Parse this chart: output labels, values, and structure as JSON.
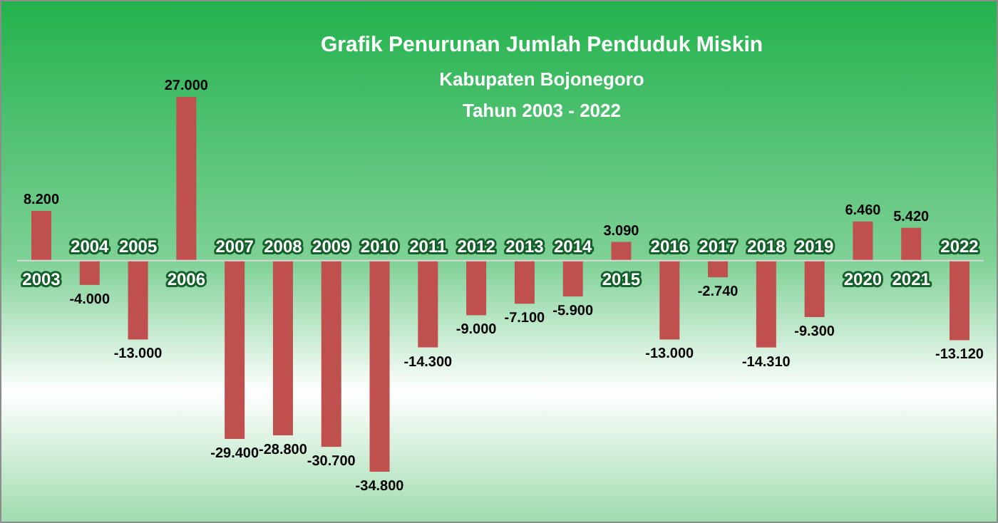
{
  "chart_data": {
    "type": "bar",
    "title": "Grafik Penurunan Jumlah Penduduk Miskin",
    "subtitle": "Kabupaten Bojonegoro\nTahun 2003 - 2022",
    "categories": [
      "2003",
      "2004",
      "2005",
      "2006",
      "2007",
      "2008",
      "2009",
      "2010",
      "2011",
      "2012",
      "2013",
      "2014",
      "2015",
      "2016",
      "2017",
      "2018",
      "2019",
      "2020",
      "2021",
      "2022"
    ],
    "values": [
      8200,
      -4000,
      -13000,
      27000,
      -29400,
      -28800,
      -30700,
      -34800,
      -14300,
      -9000,
      -7100,
      -5900,
      3090,
      -13000,
      -2740,
      -14310,
      -9300,
      6460,
      5420,
      -13120
    ],
    "value_labels": [
      "8.200",
      "-4.000",
      "-13.000",
      "27.000",
      "-29.400",
      "-28.800",
      "-30.700",
      "-34.800",
      "-14.300",
      "-9.000",
      "-7.100",
      "-5.900",
      "3.090",
      "-13.000",
      "-2.740",
      "-14.310",
      "-9.300",
      "6.460",
      "5.420",
      "-13.120"
    ],
    "color": "#c0504d",
    "grid": false,
    "legend": false
  }
}
